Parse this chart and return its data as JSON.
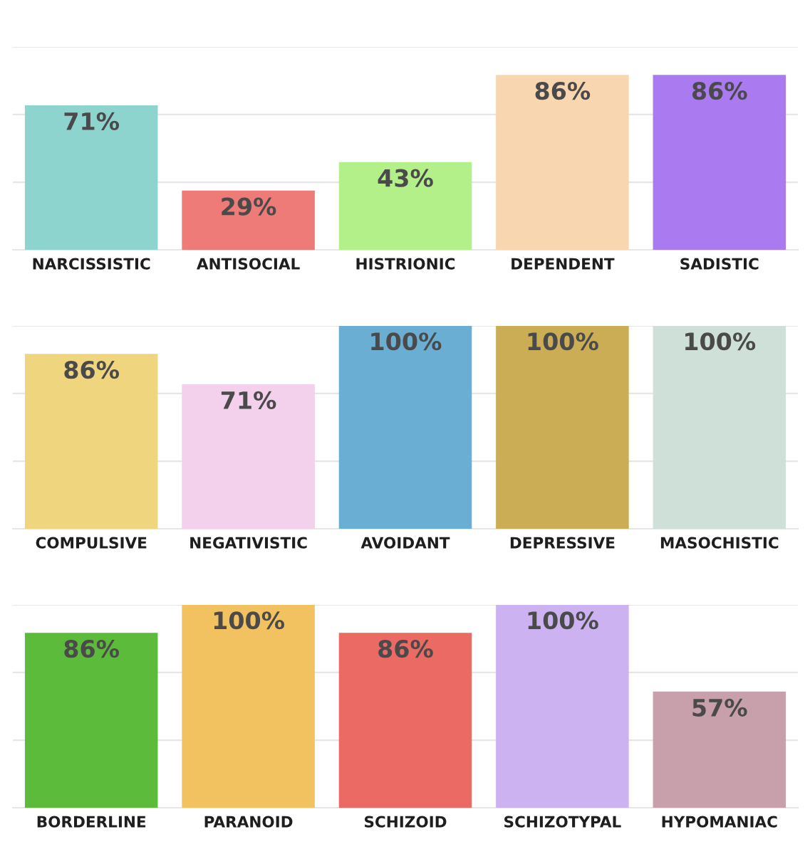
{
  "chart_data": [
    {
      "type": "bar",
      "categories": [
        "NARCISSISTIC",
        "ANTISOCIAL",
        "HISTRIONIC",
        "DEPENDENT",
        "SADISTIC"
      ],
      "values": [
        71,
        29,
        43,
        86,
        86
      ],
      "value_labels": [
        "71%",
        "29%",
        "43%",
        "86%",
        "86%"
      ],
      "colors": [
        "#8dd4cf",
        "#ee7b77",
        "#b4f08a",
        "#f8d6b0",
        "#a97af0"
      ],
      "ylim": [
        0,
        100
      ],
      "yticks": [
        {
          "value": 33.3,
          "label": null
        },
        {
          "value": 66.7,
          "label": null
        },
        {
          "value": 100,
          "label": null
        }
      ],
      "grid": "y",
      "tick_labels": "x"
    },
    {
      "type": "bar",
      "categories": [
        "COMPULSIVE",
        "NEGATIVISTIC",
        "AVOIDANT",
        "DEPRESSIVE",
        "MASOCHISTIC"
      ],
      "values": [
        86,
        71,
        100,
        100,
        100
      ],
      "value_labels": [
        "86%",
        "71%",
        "100%",
        "100%",
        "100%"
      ],
      "colors": [
        "#f0d57f",
        "#f3d0ec",
        "#6aaed3",
        "#cbad55",
        "#cfe0d8"
      ],
      "ylim": [
        0,
        100
      ],
      "yticks": [
        {
          "value": 33.3,
          "label": null
        },
        {
          "value": 66.7,
          "label": null
        },
        {
          "value": 100,
          "label": null
        }
      ],
      "grid": "y",
      "tick_labels": "x"
    },
    {
      "type": "bar",
      "categories": [
        "BORDERLINE",
        "PARANOID",
        "SCHIZOID",
        "SCHIZOTYPAL",
        "HYPOMANIAC"
      ],
      "values": [
        86,
        100,
        86,
        100,
        57
      ],
      "value_labels": [
        "86%",
        "100%",
        "86%",
        "100%",
        "57%"
      ],
      "colors": [
        "#5cbb3a",
        "#f3c260",
        "#eb6a63",
        "#cdb2f2",
        "#c8a0ac"
      ],
      "ylim": [
        0,
        100
      ],
      "yticks": [
        {
          "value": 33.3,
          "label": null
        },
        {
          "value": 66.7,
          "label": null
        },
        {
          "value": 100,
          "label": null
        }
      ],
      "grid": "y",
      "tick_labels": "x"
    }
  ]
}
